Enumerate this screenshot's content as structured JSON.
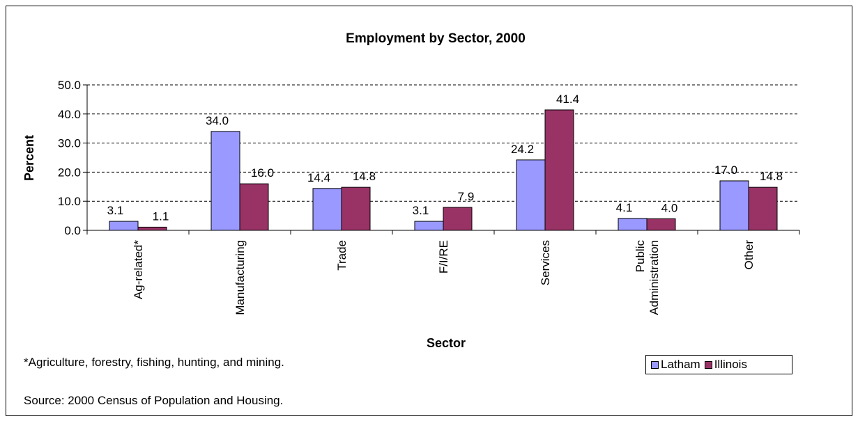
{
  "chart_data": {
    "type": "bar",
    "title": "Employment by Sector, 2000",
    "xlabel": "Sector",
    "ylabel": "Percent",
    "categories": [
      "Ag-related*",
      "Manufacturing",
      "Trade",
      "F/I/RE",
      "Services",
      "Public Administration",
      "Other"
    ],
    "series": [
      {
        "name": "Latham",
        "color": "#9999ff",
        "values": [
          3.1,
          34.0,
          14.4,
          3.1,
          24.2,
          4.1,
          17.0
        ]
      },
      {
        "name": "Illinois",
        "color": "#993366",
        "values": [
          1.1,
          16.0,
          14.8,
          7.9,
          41.4,
          4.0,
          14.8
        ]
      }
    ],
    "ylim": [
      0,
      50
    ],
    "yticks": [
      "0.0",
      "10.0",
      "20.0",
      "30.0",
      "40.0",
      "50.0"
    ],
    "grid": true,
    "legend_position": "bottom-right"
  },
  "notes": {
    "footnote": "*Agriculture, forestry, fishing, hunting, and mining.",
    "source": "Source: 2000 Census of Population and Housing."
  }
}
